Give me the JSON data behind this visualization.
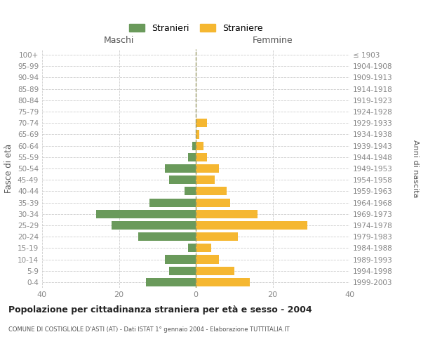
{
  "age_groups": [
    "100+",
    "95-99",
    "90-94",
    "85-89",
    "80-84",
    "75-79",
    "70-74",
    "65-69",
    "60-64",
    "55-59",
    "50-54",
    "45-49",
    "40-44",
    "35-39",
    "30-34",
    "25-29",
    "20-24",
    "15-19",
    "10-14",
    "5-9",
    "0-4"
  ],
  "birth_years": [
    "≤ 1903",
    "1904-1908",
    "1909-1913",
    "1914-1918",
    "1919-1923",
    "1924-1928",
    "1929-1933",
    "1934-1938",
    "1939-1943",
    "1944-1948",
    "1949-1953",
    "1954-1958",
    "1959-1963",
    "1964-1968",
    "1969-1973",
    "1974-1978",
    "1979-1983",
    "1984-1988",
    "1989-1993",
    "1994-1998",
    "1999-2003"
  ],
  "males": [
    0,
    0,
    0,
    0,
    0,
    0,
    0,
    0,
    1,
    2,
    8,
    7,
    3,
    12,
    26,
    22,
    15,
    2,
    8,
    7,
    13
  ],
  "females": [
    0,
    0,
    0,
    0,
    0,
    0,
    3,
    1,
    2,
    3,
    6,
    5,
    8,
    9,
    16,
    29,
    11,
    4,
    6,
    10,
    14
  ],
  "male_color": "#6a9a5b",
  "female_color": "#f5b731",
  "grid_color": "#cccccc",
  "centerline_color": "#999966",
  "title": "Popolazione per cittadinanza straniera per età e sesso - 2004",
  "subtitle": "COMUNE DI COSTIGLIOLE D'ASTI (AT) - Dati ISTAT 1° gennaio 2004 - Elaborazione TUTTITALIA.IT",
  "ylabel_left": "Fasce di età",
  "ylabel_right": "Anni di nascita",
  "xlabel_left": "Maschi",
  "xlabel_right": "Femmine",
  "legend_male": "Stranieri",
  "legend_female": "Straniere",
  "xlim": 40,
  "bar_height": 0.75,
  "tick_color": "#888888",
  "label_color": "#555555"
}
